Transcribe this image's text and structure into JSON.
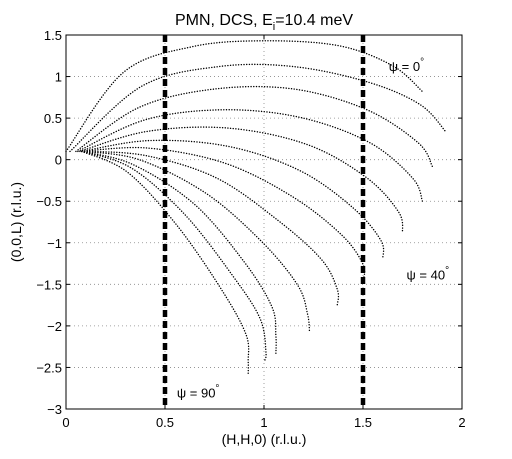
{
  "chart_data": {
    "type": "line",
    "title_main": "PMN, DCS, E",
    "title_sub": "i",
    "title_rest": "=10.4 meV",
    "xlabel": "(H,H,0) (r.l.u.)",
    "ylabel": "(0,0,L) (r.l.u.)",
    "xlim": [
      0,
      2
    ],
    "ylim": [
      -3,
      1.5
    ],
    "xticks": [
      0,
      0.5,
      1,
      1.5,
      2
    ],
    "xtick_labels": [
      "0",
      "0.5",
      "1",
      "1.5",
      "2"
    ],
    "yticks": [
      -3,
      -2.5,
      -2,
      -1.5,
      -1,
      -0.5,
      0,
      0.5,
      1,
      1.5
    ],
    "ytick_labels": [
      "−3",
      "−2.5",
      "−2",
      "−1.5",
      "−1",
      "−0.5",
      "0",
      "0.5",
      "1",
      "1.5"
    ],
    "grid": true,
    "vertical_lines": [
      {
        "x": 0.5,
        "style": "thick-dashed"
      },
      {
        "x": 1.5,
        "style": "thick-dashed"
      }
    ],
    "series": [
      {
        "x": [
          0,
          0.29,
          0.64,
          1.0,
          1.38,
          1.65,
          1.8
        ],
        "y": [
          0.1,
          1.05,
          1.36,
          1.43,
          1.37,
          1.13,
          0.82
        ]
      },
      {
        "x": [
          0.02,
          0.38,
          0.77,
          1.15,
          1.53,
          1.79,
          1.92
        ],
        "y": [
          0.1,
          0.88,
          1.12,
          1.12,
          0.93,
          0.66,
          0.33
        ]
      },
      {
        "x": [
          0.05,
          0.37,
          0.75,
          1.15,
          1.52,
          1.78,
          1.85
        ],
        "y": [
          0.1,
          0.63,
          0.85,
          0.85,
          0.6,
          0.2,
          -0.08
        ]
      },
      {
        "x": [
          0.06,
          0.4,
          0.79,
          1.18,
          1.53,
          1.75,
          1.8
        ],
        "y": [
          0.1,
          0.48,
          0.6,
          0.51,
          0.21,
          -0.22,
          -0.5
        ]
      },
      {
        "x": [
          0.07,
          0.41,
          0.82,
          1.22,
          1.52,
          1.68,
          1.7
        ],
        "y": [
          0.1,
          0.34,
          0.38,
          0.18,
          -0.22,
          -0.63,
          -0.88
        ]
      },
      {
        "x": [
          0.08,
          0.42,
          0.82,
          1.18,
          1.45,
          1.59,
          1.6
        ],
        "y": [
          0.1,
          0.23,
          0.16,
          -0.13,
          -0.58,
          -0.97,
          -1.19
        ]
      },
      {
        "x": [
          0.08,
          0.41,
          0.8,
          1.14,
          1.39,
          1.5,
          1.5
        ],
        "y": [
          0.1,
          0.14,
          -0.04,
          -0.44,
          -0.9,
          -1.26,
          -1.47
        ]
      },
      {
        "x": [
          0.08,
          0.4,
          0.76,
          1.07,
          1.29,
          1.37,
          1.37
        ],
        "y": [
          0.1,
          0.05,
          -0.22,
          -0.73,
          -1.2,
          -1.56,
          -1.75
        ]
      },
      {
        "x": [
          0.08,
          0.37,
          0.71,
          0.99,
          1.17,
          1.22,
          1.23
        ],
        "y": [
          0.1,
          0.0,
          -0.41,
          -0.99,
          -1.51,
          -1.86,
          -2.07
        ]
      },
      {
        "x": [
          0.08,
          0.34,
          0.65,
          0.9,
          1.04,
          1.06,
          1.06
        ],
        "y": [
          0.1,
          -0.06,
          -0.54,
          -1.23,
          -1.77,
          -2.12,
          -2.33
        ]
      },
      {
        "x": [
          0.08,
          0.33,
          0.6,
          0.84,
          0.98,
          1.01,
          1.0
        ],
        "y": [
          0.1,
          -0.1,
          -0.66,
          -1.39,
          -1.91,
          -2.32,
          -2.43
        ]
      },
      {
        "x": [
          0.08,
          0.31,
          0.56,
          0.79,
          0.91,
          0.92,
          0.92
        ],
        "y": [
          0.1,
          -0.15,
          -0.79,
          -1.58,
          -2.11,
          -2.43,
          -2.57
        ]
      }
    ],
    "annotations": [
      {
        "text": "ψ = 0",
        "degree": "°",
        "x": 1.63,
        "y": 1.13
      },
      {
        "text": "ψ = 40",
        "degree": "°",
        "x": 1.72,
        "y": -1.38
      },
      {
        "text": "ψ = 90",
        "degree": "°",
        "x": 0.56,
        "y": -2.8
      }
    ]
  }
}
